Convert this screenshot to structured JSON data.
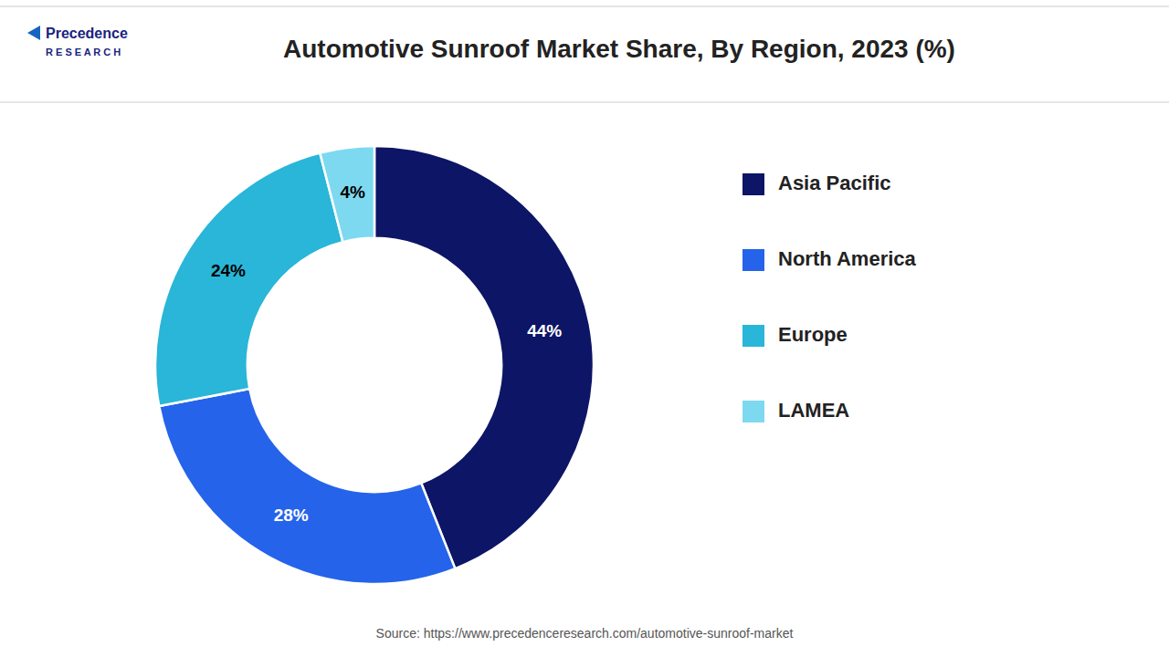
{
  "chart_data": {
    "type": "pie",
    "title": "Automotive Sunroof Market Share, By Region, 2023 (%)",
    "categories": [
      "Asia Pacific",
      "North America",
      "Europe",
      "LAMEA"
    ],
    "values": [
      44,
      28,
      24,
      4
    ],
    "value_labels": [
      "44%",
      "28%",
      "24%",
      "4%"
    ],
    "colors": [
      "#0d1566",
      "#2563eb",
      "#29b6d8",
      "#7dd9f0"
    ],
    "data_labels": true,
    "legend": "right",
    "annotations": [
      "Source: https://www.precedenceresearch.com/automotive-sunroof-market",
      "Precedence",
      "R E S E A R C H"
    ]
  }
}
